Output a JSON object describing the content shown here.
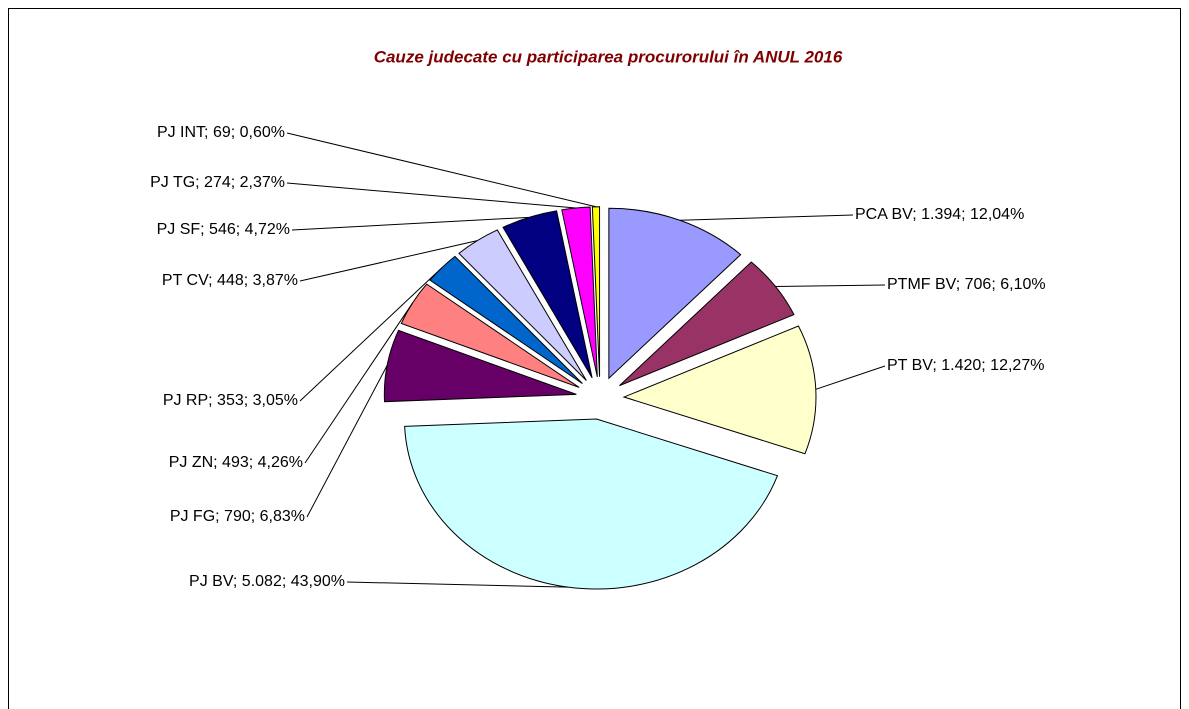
{
  "chart_data": {
    "type": "pie",
    "title": "Cauze judecate cu participarea procurorului în ANUL 2016",
    "values": [
      1394,
      706,
      1420,
      5082,
      790,
      493,
      353,
      448,
      546,
      274,
      69
    ],
    "value_labels": [
      "PCA BV; 1.394; 12,04%",
      "PTMF BV; 706; 6,10%",
      "PT BV; 1.420; 12,27%",
      "PJ BV; 5.082; 43,90%",
      "PJ FG; 790; 6,83%",
      "PJ ZN; 493; 4,26%",
      "PJ RP; 353; 3,05%",
      "PT CV; 448; 3,87%",
      "PJ SF; 546; 4,72%",
      "PJ TG; 274; 2,37%",
      "PJ INT; 69; 0,60%"
    ],
    "colors": [
      "#9999ff",
      "#993366",
      "#ffffcc",
      "#ccffff",
      "#660066",
      "#ff8080",
      "#0066cc",
      "#ccccff",
      "#000080",
      "#ff00ff",
      "#ffff00"
    ]
  }
}
